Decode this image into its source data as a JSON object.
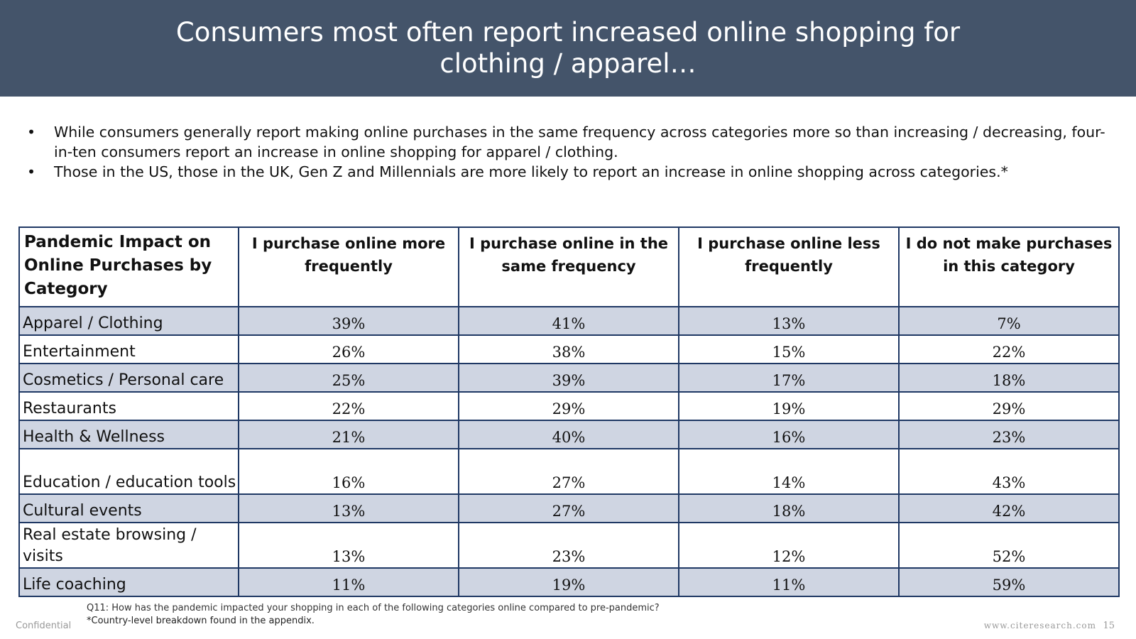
{
  "title": "Consumers most often report increased online shopping for clothing / apparel…",
  "bullets": [
    "While consumers generally report making online purchases in the same frequency across categories more so than increasing / decreasing, four-in-ten consumers report an increase in online shopping for apparel / clothing.",
    "Those in the US, those in the UK, Gen Z and Millennials are more likely to report an increase in online shopping across categories.*"
  ],
  "bullet_symbol": "•",
  "table": {
    "corner_header": "Pandemic Impact on Online Purchases by Category",
    "columns": [
      "I purchase online more frequently",
      "I purchase online in the same frequency",
      "I purchase online less frequently",
      "I do not make purchases in this category"
    ],
    "rows": [
      {
        "category": "Apparel / Clothing",
        "values": [
          "39%",
          "41%",
          "13%",
          "7%"
        ]
      },
      {
        "category": "Entertainment",
        "values": [
          "26%",
          "38%",
          "15%",
          "22%"
        ]
      },
      {
        "category": "Cosmetics / Personal care",
        "values": [
          "25%",
          "39%",
          "17%",
          "18%"
        ]
      },
      {
        "category": "Restaurants",
        "values": [
          "22%",
          "29%",
          "19%",
          "29%"
        ]
      },
      {
        "category": "Health & Wellness",
        "values": [
          "21%",
          "40%",
          "16%",
          "23%"
        ]
      },
      {
        "category": "Education / education tools",
        "values": [
          "16%",
          "27%",
          "14%",
          "43%"
        ]
      },
      {
        "category": "Cultural events",
        "values": [
          "13%",
          "27%",
          "18%",
          "42%"
        ]
      },
      {
        "category": "Real estate browsing / visits",
        "values": [
          "13%",
          "23%",
          "12%",
          "52%"
        ]
      },
      {
        "category": "Life coaching",
        "values": [
          "11%",
          "19%",
          "11%",
          "59%"
        ]
      }
    ]
  },
  "footnotes": {
    "question": "Q11: How has the pandemic impacted your shopping in each of the following categories online compared to pre-pandemic?",
    "note": "*Country-level breakdown found in the appendix."
  },
  "footer": {
    "confidential": "Confidential",
    "website": "www.citeresearch.com",
    "page_number": "15"
  },
  "colors": {
    "title_bar": "#44546a",
    "table_border": "#1f3864",
    "shaded_row": "#cfd5e2"
  }
}
